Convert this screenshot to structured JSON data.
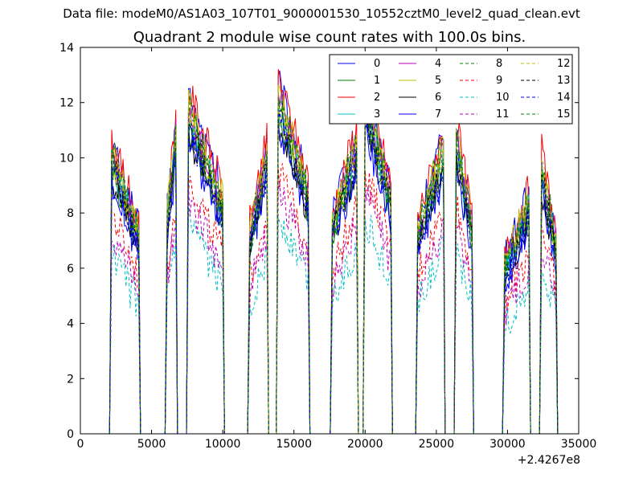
{
  "figure": {
    "suptitle": "Data file: modeM0/AS1A03_107T01_9000001530_10552cztM0_level2_quad_clean.evt"
  },
  "chart_data": {
    "type": "line",
    "title": "Quadrant 2 module wise count rates with 100.0s bins.",
    "xlabel": "",
    "ylabel": "",
    "x_offset_text": "+2.4267e8",
    "xlim": [
      0,
      35000
    ],
    "ylim": [
      0,
      14
    ],
    "xticks": [
      "0",
      "5000",
      "10000",
      "15000",
      "20000",
      "25000",
      "30000",
      "35000"
    ],
    "yticks": [
      "0",
      "2",
      "4",
      "6",
      "8",
      "10",
      "12",
      "14"
    ],
    "grid": false,
    "legend_position": "top-right",
    "segments": [
      {
        "start": 2200,
        "end": 4100,
        "shape": "decay",
        "level": 8.6
      },
      {
        "start": 6100,
        "end": 6700,
        "shape": "rise",
        "level": 9.7
      },
      {
        "start": 7600,
        "end": 10000,
        "shape": "decay",
        "level": 10.0
      },
      {
        "start": 11900,
        "end": 13100,
        "shape": "rise",
        "level": 9.0
      },
      {
        "start": 13900,
        "end": 16000,
        "shape": "decay",
        "level": 10.4
      },
      {
        "start": 17700,
        "end": 19400,
        "shape": "rise",
        "level": 9.4
      },
      {
        "start": 20000,
        "end": 21800,
        "shape": "decay",
        "level": 10.3
      },
      {
        "start": 23700,
        "end": 25500,
        "shape": "rise",
        "level": 9.2
      },
      {
        "start": 26400,
        "end": 27500,
        "shape": "decay",
        "level": 9.0
      },
      {
        "start": 29800,
        "end": 31500,
        "shape": "rise",
        "level": 7.5
      },
      {
        "start": 32400,
        "end": 33400,
        "shape": "decay",
        "level": 8.2
      }
    ],
    "series": [
      {
        "name": "0",
        "color": "#0000ff",
        "dash": "solid",
        "factor": 1.02
      },
      {
        "name": "1",
        "color": "#008000",
        "dash": "solid",
        "factor": 0.93
      },
      {
        "name": "2",
        "color": "#ff0000",
        "dash": "solid",
        "factor": 1.04
      },
      {
        "name": "3",
        "color": "#00bfbf",
        "dash": "solid",
        "factor": 0.96
      },
      {
        "name": "4",
        "color": "#bf00bf",
        "dash": "solid",
        "factor": 0.98
      },
      {
        "name": "5",
        "color": "#bfbf00",
        "dash": "solid",
        "factor": 1.0
      },
      {
        "name": "6",
        "color": "#000000",
        "dash": "solid",
        "factor": 0.91
      },
      {
        "name": "7",
        "color": "#0000ff",
        "dash": "solid",
        "factor": 0.89
      },
      {
        "name": "8",
        "color": "#008000",
        "dash": "dashed",
        "factor": 0.95
      },
      {
        "name": "9",
        "color": "#ff0000",
        "dash": "dashed",
        "factor": 0.77
      },
      {
        "name": "10",
        "color": "#00bfbf",
        "dash": "dashed",
        "factor": 0.63
      },
      {
        "name": "11",
        "color": "#bf00bf",
        "dash": "dashed",
        "factor": 0.71
      },
      {
        "name": "12",
        "color": "#bfbf00",
        "dash": "dashed",
        "factor": 0.97
      },
      {
        "name": "13",
        "color": "#000000",
        "dash": "dashed",
        "factor": 0.94
      },
      {
        "name": "14",
        "color": "#0000ff",
        "dash": "dashed",
        "factor": 0.92
      },
      {
        "name": "15",
        "color": "#008000",
        "dash": "dashed",
        "factor": 0.99
      }
    ]
  }
}
